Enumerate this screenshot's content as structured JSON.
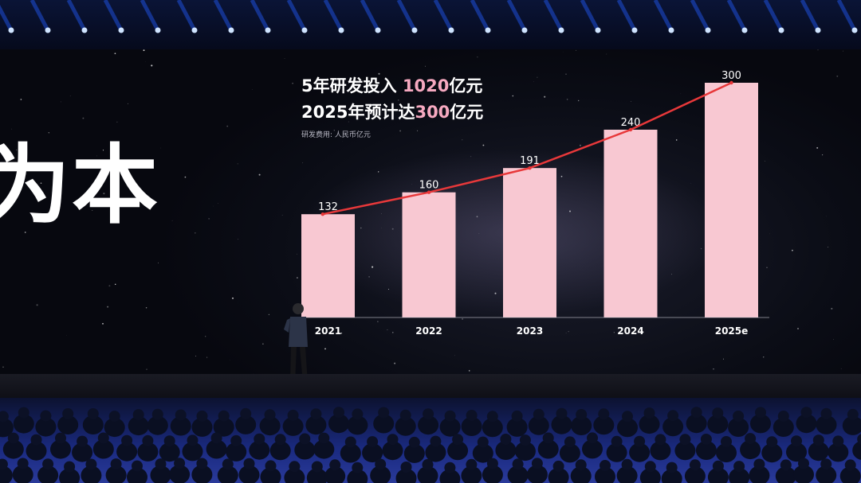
{
  "slide": {
    "big_text": "为本",
    "title_line1_prefix": "5年研发投入 ",
    "title_line1_highlight": "1020",
    "title_line1_suffix": "亿元",
    "title_line2_prefix": "2025年预计达",
    "title_line2_highlight": "300",
    "title_line2_suffix": "亿元",
    "note": "研发费用: 人民币亿元"
  },
  "colors": {
    "bar": "#f8c8d2",
    "line": "#e8383a",
    "highlight": "#f6a9c0",
    "label": "#ffffff"
  },
  "chart_data": {
    "type": "bar",
    "categories": [
      "2021",
      "2022",
      "2023",
      "2024",
      "2025e"
    ],
    "values": [
      132,
      160,
      191,
      240,
      300
    ],
    "data_labels": [
      "132",
      "160",
      "191",
      "240",
      "300"
    ],
    "overlay": "line",
    "ylim": [
      0,
      320
    ],
    "grid": false,
    "legend": "none",
    "title": "",
    "xlabel": "",
    "ylabel": ""
  }
}
